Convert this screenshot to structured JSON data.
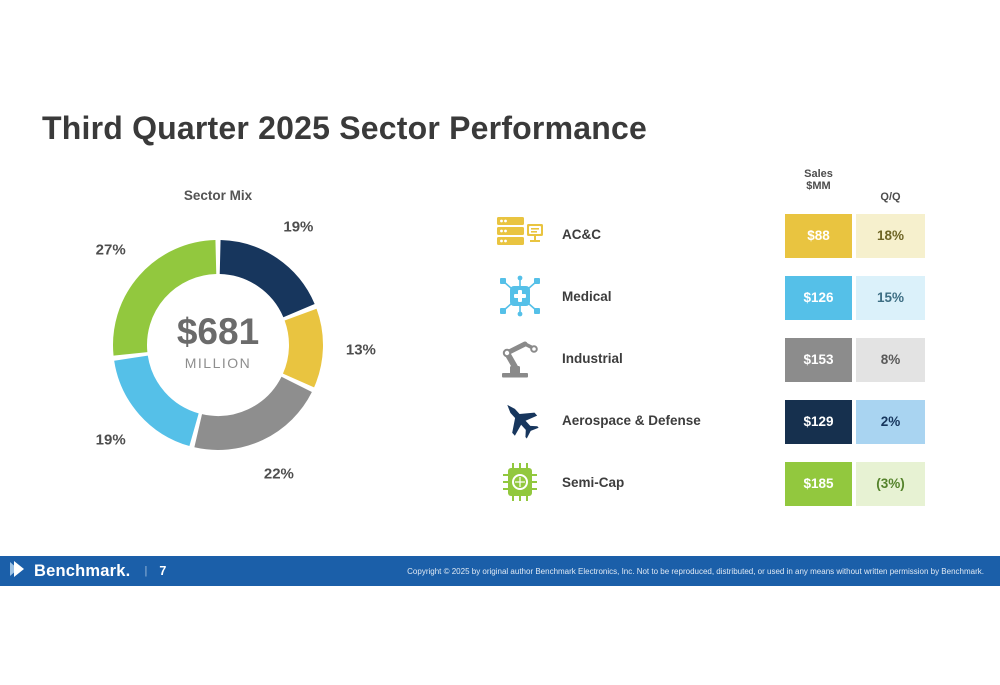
{
  "page": {
    "title": "Third Quarter 2025 Sector Performance"
  },
  "chart_data": {
    "type": "pie",
    "title": "Sector Mix",
    "center_value": "$681",
    "center_label": "MILLION",
    "start_angle_deg": 0,
    "direction": "clockwise",
    "segments": [
      {
        "label": "Aerospace & Defense",
        "value": 19,
        "text": "19%",
        "color": "#17365d"
      },
      {
        "label": "AC&C",
        "value": 13,
        "text": "13%",
        "color": "#e9c440"
      },
      {
        "label": "Industrial",
        "value": 22,
        "text": "22%",
        "color": "#8e8e8e"
      },
      {
        "label": "Medical",
        "value": 19,
        "text": "19%",
        "color": "#55c0e8"
      },
      {
        "label": "Semi-Cap",
        "value": 27,
        "text": "27%",
        "color": "#92c83e"
      }
    ]
  },
  "table": {
    "headers": {
      "sales_line1": "Sales",
      "sales_line2": "$MM",
      "qq": "Q/Q"
    },
    "rows": [
      {
        "sector": "AC&C",
        "icon": "server-rack-icon",
        "sales": "$88",
        "qq": "18%",
        "colors": {
          "sales_bg": "#e9c440",
          "sales_text": "#ffffff",
          "qq_bg": "#f6f0cd",
          "qq_text": "#6e6526"
        }
      },
      {
        "sector": "Medical",
        "icon": "medical-network-icon",
        "sales": "$126",
        "qq": "15%",
        "colors": {
          "sales_bg": "#55c0e8",
          "sales_text": "#ffffff",
          "qq_bg": "#dbf1fa",
          "qq_text": "#3d6e83"
        }
      },
      {
        "sector": "Industrial",
        "icon": "robot-arm-icon",
        "sales": "$153",
        "qq": "8%",
        "colors": {
          "sales_bg": "#8c8c8c",
          "sales_text": "#ffffff",
          "qq_bg": "#e3e3e3",
          "qq_text": "#595959"
        }
      },
      {
        "sector": "Aerospace & Defense",
        "icon": "fighter-jet-icon",
        "sales": "$129",
        "qq": "2%",
        "colors": {
          "sales_bg": "#16304e",
          "sales_text": "#ffffff",
          "qq_bg": "#a9d4f1",
          "qq_text": "#17365d"
        }
      },
      {
        "sector": "Semi-Cap",
        "icon": "semiconductor-chip-icon",
        "sales": "$185",
        "qq": "(3%)",
        "colors": {
          "sales_bg": "#92c83e",
          "sales_text": "#ffffff",
          "qq_bg": "#e7f2d3",
          "qq_text": "#55832c"
        }
      }
    ]
  },
  "footer": {
    "brand": "Benchmark.",
    "separator": "|",
    "page_number": "7",
    "copyright": "Copyright © 2025 by original author Benchmark Electronics, Inc. Not to be reproduced, distributed, or used in any means without written permission by Benchmark.",
    "bar_color": "#1b5fa9"
  }
}
